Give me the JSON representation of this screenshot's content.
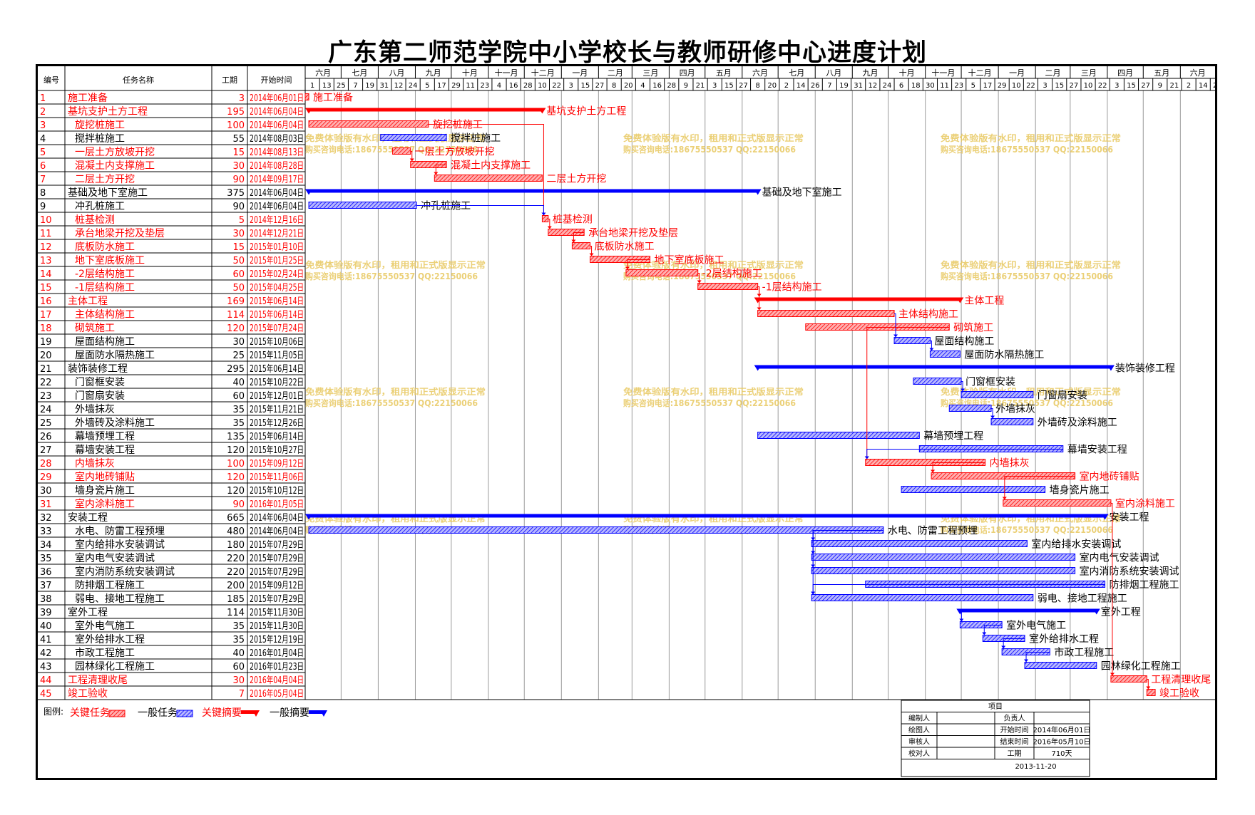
{
  "title": "广东第二师范学院中小学校长与教师研修中心进度计划",
  "headers": {
    "id": "编号",
    "name": "任务名称",
    "dur": "工期",
    "start": "开始时间"
  },
  "colors": {
    "critical": "#ff0000",
    "normal": "#0000ff",
    "criticalFill": "#ff8080",
    "normalFill": "#8080ff",
    "watermark": "#e8c860"
  },
  "timeline": {
    "months": [
      "六月",
      "七月",
      "八月",
      "九月",
      "十月",
      "十一月",
      "十二月",
      "一月",
      "二月",
      "三月",
      "四月",
      "五月",
      "六月",
      "七月",
      "八月",
      "九月",
      "十月",
      "十一月",
      "十二月",
      "一月",
      "二月",
      "三月",
      "四月",
      "五月",
      "六月"
    ],
    "days": [
      "1",
      "13",
      "25",
      "7",
      "19",
      "31",
      "12",
      "24",
      "5",
      "17",
      "29",
      "11",
      "23",
      "4",
      "16",
      "28",
      "10",
      "22",
      "3",
      "15",
      "27",
      "8",
      "20",
      "4",
      "16",
      "28",
      "9",
      "21",
      "3",
      "15",
      "27",
      "8",
      "20",
      "2",
      "14",
      "26",
      "7",
      "19",
      "31",
      "12",
      "24",
      "6",
      "18",
      "30",
      "11",
      "23",
      "5",
      "17",
      "29",
      "10",
      "22",
      "3",
      "15",
      "27",
      "10",
      "22",
      "3",
      "15",
      "27",
      "9",
      "21",
      "2",
      "14",
      "26"
    ]
  },
  "tasks": [
    {
      "id": "1",
      "name": "施工准备",
      "dur": "3",
      "start": "2014年06月01日",
      "critical": true,
      "level": 0
    },
    {
      "id": "2",
      "name": "基坑支护土方工程",
      "dur": "195",
      "start": "2014年06月04日",
      "critical": true,
      "level": 0
    },
    {
      "id": "3",
      "name": "旋挖桩施工",
      "dur": "100",
      "start": "2014年06月04日",
      "critical": true,
      "level": 1
    },
    {
      "id": "4",
      "name": "搅拌桩施工",
      "dur": "55",
      "start": "2014年08月03日",
      "critical": false,
      "level": 1
    },
    {
      "id": "5",
      "name": "一层土方放坡开挖",
      "dur": "15",
      "start": "2014年08月13日",
      "critical": true,
      "level": 1
    },
    {
      "id": "6",
      "name": "混凝土内支撑施工",
      "dur": "30",
      "start": "2014年08月28日",
      "critical": true,
      "level": 1
    },
    {
      "id": "7",
      "name": "二层土方开挖",
      "dur": "90",
      "start": "2014年09月17日",
      "critical": true,
      "level": 1
    },
    {
      "id": "8",
      "name": "基础及地下室施工",
      "dur": "375",
      "start": "2014年06月04日",
      "critical": false,
      "level": 0
    },
    {
      "id": "9",
      "name": "冲孔桩施工",
      "dur": "90",
      "start": "2014年06月04日",
      "critical": false,
      "level": 1
    },
    {
      "id": "10",
      "name": "桩基检测",
      "dur": "5",
      "start": "2014年12月16日",
      "critical": true,
      "level": 1
    },
    {
      "id": "11",
      "name": "承台地梁开挖及垫层",
      "dur": "30",
      "start": "2014年12月21日",
      "critical": true,
      "level": 1
    },
    {
      "id": "12",
      "name": "底板防水施工",
      "dur": "15",
      "start": "2015年01月10日",
      "critical": true,
      "level": 1
    },
    {
      "id": "13",
      "name": "地下室底板施工",
      "dur": "50",
      "start": "2015年01月25日",
      "critical": true,
      "level": 1
    },
    {
      "id": "14",
      "name": "-2层结构施工",
      "dur": "60",
      "start": "2015年02月24日",
      "critical": true,
      "level": 1
    },
    {
      "id": "15",
      "name": "-1层结构施工",
      "dur": "50",
      "start": "2015年04月25日",
      "critical": true,
      "level": 1
    },
    {
      "id": "16",
      "name": "主体工程",
      "dur": "169",
      "start": "2015年06月14日",
      "critical": true,
      "level": 0
    },
    {
      "id": "17",
      "name": "主体结构施工",
      "dur": "114",
      "start": "2015年06月14日",
      "critical": true,
      "level": 1
    },
    {
      "id": "18",
      "name": "砌筑施工",
      "dur": "120",
      "start": "2015年07月24日",
      "critical": true,
      "level": 1
    },
    {
      "id": "19",
      "name": "屋面结构施工",
      "dur": "30",
      "start": "2015年10月06日",
      "critical": false,
      "level": 1
    },
    {
      "id": "20",
      "name": "屋面防水隔热施工",
      "dur": "25",
      "start": "2015年11月05日",
      "critical": false,
      "level": 1
    },
    {
      "id": "21",
      "name": "装饰装修工程",
      "dur": "295",
      "start": "2015年06月14日",
      "critical": false,
      "level": 0
    },
    {
      "id": "22",
      "name": "门窗框安装",
      "dur": "40",
      "start": "2015年10月22日",
      "critical": false,
      "level": 1
    },
    {
      "id": "23",
      "name": "门窗扇安装",
      "dur": "60",
      "start": "2015年12月01日",
      "critical": false,
      "level": 1
    },
    {
      "id": "24",
      "name": "外墙抹灰",
      "dur": "35",
      "start": "2015年11月21日",
      "critical": false,
      "level": 1
    },
    {
      "id": "25",
      "name": "外墙砖及涂料施工",
      "dur": "35",
      "start": "2015年12月26日",
      "critical": false,
      "level": 1
    },
    {
      "id": "26",
      "name": "幕墙预埋工程",
      "dur": "135",
      "start": "2015年06月14日",
      "critical": false,
      "level": 1
    },
    {
      "id": "27",
      "name": "幕墙安装工程",
      "dur": "120",
      "start": "2015年10月27日",
      "critical": false,
      "level": 1
    },
    {
      "id": "28",
      "name": "内墙抹灰",
      "dur": "100",
      "start": "2015年09月12日",
      "critical": true,
      "level": 1
    },
    {
      "id": "29",
      "name": "室内地砖铺贴",
      "dur": "120",
      "start": "2015年11月06日",
      "critical": true,
      "level": 1
    },
    {
      "id": "30",
      "name": "墙身瓷片施工",
      "dur": "120",
      "start": "2015年10月12日",
      "critical": false,
      "level": 1
    },
    {
      "id": "31",
      "name": "室内涂料施工",
      "dur": "90",
      "start": "2016年01月05日",
      "critical": true,
      "level": 1
    },
    {
      "id": "32",
      "name": "安装工程",
      "dur": "665",
      "start": "2014年06月04日",
      "critical": false,
      "level": 0
    },
    {
      "id": "33",
      "name": "水电、防雷工程预埋",
      "dur": "480",
      "start": "2014年06月04日",
      "critical": false,
      "level": 1
    },
    {
      "id": "34",
      "name": "室内给排水安装调试",
      "dur": "180",
      "start": "2015年07月29日",
      "critical": false,
      "level": 1
    },
    {
      "id": "35",
      "name": "室内电气安装调试",
      "dur": "220",
      "start": "2015年07月29日",
      "critical": false,
      "level": 1
    },
    {
      "id": "36",
      "name": "室内消防系统安装调试",
      "dur": "220",
      "start": "2015年07月29日",
      "critical": false,
      "level": 1
    },
    {
      "id": "37",
      "name": "防排烟工程施工",
      "dur": "200",
      "start": "2015年09月12日",
      "critical": false,
      "level": 1
    },
    {
      "id": "38",
      "name": "弱电、接地工程施工",
      "dur": "185",
      "start": "2015年07月29日",
      "critical": false,
      "level": 1
    },
    {
      "id": "39",
      "name": "室外工程",
      "dur": "114",
      "start": "2015年11月30日",
      "critical": false,
      "level": 0
    },
    {
      "id": "40",
      "name": "室外电气施工",
      "dur": "35",
      "start": "2015年11月30日",
      "critical": false,
      "level": 1
    },
    {
      "id": "41",
      "name": "室外给排水工程",
      "dur": "35",
      "start": "2015年12月19日",
      "critical": false,
      "level": 1
    },
    {
      "id": "42",
      "name": "市政工程施工",
      "dur": "40",
      "start": "2016年01月04日",
      "critical": false,
      "level": 1
    },
    {
      "id": "43",
      "name": "园林绿化工程施工",
      "dur": "60",
      "start": "2016年01月23日",
      "critical": false,
      "level": 1
    },
    {
      "id": "44",
      "name": "工程清理收尾",
      "dur": "30",
      "start": "2016年04月04日",
      "critical": true,
      "level": 0
    },
    {
      "id": "45",
      "name": "竣工验收",
      "dur": "7",
      "start": "2016年05月04日",
      "critical": true,
      "level": 0
    }
  ],
  "legend": {
    "label": "图例:",
    "critical_task": "关键任务",
    "normal_task": "一般任务",
    "critical_summary": "关键摘要",
    "normal_summary": "一般摘要"
  },
  "watermark": {
    "line1": "免费体验版有水印，租用和正式版显示正常",
    "line2": "购买咨询电话:18675550537 QQ:22150066"
  },
  "info": {
    "header": "项目",
    "rows": [
      {
        "k1": "编制人",
        "v1": "",
        "k2": "负责人",
        "v2": ""
      },
      {
        "k1": "绘图人",
        "v1": "",
        "k2": "开始时间",
        "v2": "2014年06月01日"
      },
      {
        "k1": "审核人",
        "v1": "",
        "k2": "结束时间",
        "v2": "2016年05月10日"
      },
      {
        "k1": "校对人",
        "v1": "",
        "k2": "工期",
        "v2": "710天"
      }
    ],
    "date": "2013-11-20"
  },
  "chart_data": {
    "type": "gantt",
    "title": "广东第二师范学院中小学校长与教师研修中心进度计划",
    "x_start": "2014-06-01",
    "x_end": "2016-06-30",
    "tasks": [
      {
        "id": 1,
        "start": "2014-06-01",
        "days": 3
      },
      {
        "id": 2,
        "start": "2014-06-04",
        "days": 195
      },
      {
        "id": 3,
        "start": "2014-06-04",
        "days": 100
      },
      {
        "id": 4,
        "start": "2014-08-03",
        "days": 55
      },
      {
        "id": 5,
        "start": "2014-08-13",
        "days": 15
      },
      {
        "id": 6,
        "start": "2014-08-28",
        "days": 30
      },
      {
        "id": 7,
        "start": "2014-09-17",
        "days": 90
      },
      {
        "id": 8,
        "start": "2014-06-04",
        "days": 375
      },
      {
        "id": 9,
        "start": "2014-06-04",
        "days": 90
      },
      {
        "id": 10,
        "start": "2014-12-16",
        "days": 5
      },
      {
        "id": 11,
        "start": "2014-12-21",
        "days": 30
      },
      {
        "id": 12,
        "start": "2015-01-10",
        "days": 15
      },
      {
        "id": 13,
        "start": "2015-01-25",
        "days": 50
      },
      {
        "id": 14,
        "start": "2015-02-24",
        "days": 60
      },
      {
        "id": 15,
        "start": "2015-04-25",
        "days": 50
      },
      {
        "id": 16,
        "start": "2015-06-14",
        "days": 169
      },
      {
        "id": 17,
        "start": "2015-06-14",
        "days": 114
      },
      {
        "id": 18,
        "start": "2015-07-24",
        "days": 120
      },
      {
        "id": 19,
        "start": "2015-10-06",
        "days": 30
      },
      {
        "id": 20,
        "start": "2015-11-05",
        "days": 25
      },
      {
        "id": 21,
        "start": "2015-06-14",
        "days": 295
      },
      {
        "id": 22,
        "start": "2015-10-22",
        "days": 40
      },
      {
        "id": 23,
        "start": "2015-12-01",
        "days": 60
      },
      {
        "id": 24,
        "start": "2015-11-21",
        "days": 35
      },
      {
        "id": 25,
        "start": "2015-12-26",
        "days": 35
      },
      {
        "id": 26,
        "start": "2015-06-14",
        "days": 135
      },
      {
        "id": 27,
        "start": "2015-10-27",
        "days": 120
      },
      {
        "id": 28,
        "start": "2015-09-12",
        "days": 100
      },
      {
        "id": 29,
        "start": "2015-11-06",
        "days": 120
      },
      {
        "id": 30,
        "start": "2015-10-12",
        "days": 120
      },
      {
        "id": 31,
        "start": "2016-01-05",
        "days": 90
      },
      {
        "id": 32,
        "start": "2014-06-04",
        "days": 665
      },
      {
        "id": 33,
        "start": "2014-06-04",
        "days": 480
      },
      {
        "id": 34,
        "start": "2015-07-29",
        "days": 180
      },
      {
        "id": 35,
        "start": "2015-07-29",
        "days": 220
      },
      {
        "id": 36,
        "start": "2015-07-29",
        "days": 220
      },
      {
        "id": 37,
        "start": "2015-09-12",
        "days": 200
      },
      {
        "id": 38,
        "start": "2015-07-29",
        "days": 185
      },
      {
        "id": 39,
        "start": "2015-11-30",
        "days": 114
      },
      {
        "id": 40,
        "start": "2015-11-30",
        "days": 35
      },
      {
        "id": 41,
        "start": "2015-12-19",
        "days": 35
      },
      {
        "id": 42,
        "start": "2016-01-04",
        "days": 40
      },
      {
        "id": 43,
        "start": "2016-01-23",
        "days": 60
      },
      {
        "id": 44,
        "start": "2016-04-04",
        "days": 30
      },
      {
        "id": 45,
        "start": "2016-05-04",
        "days": 7
      }
    ]
  }
}
